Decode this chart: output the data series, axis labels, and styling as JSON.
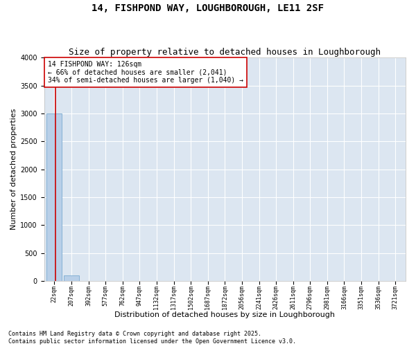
{
  "title1": "14, FISHPOND WAY, LOUGHBOROUGH, LE11 2SF",
  "title2": "Size of property relative to detached houses in Loughborough",
  "xlabel": "Distribution of detached houses by size in Loughborough",
  "ylabel": "Number of detached properties",
  "bin_labels": [
    "22sqm",
    "207sqm",
    "392sqm",
    "577sqm",
    "762sqm",
    "947sqm",
    "1132sqm",
    "1317sqm",
    "1502sqm",
    "1687sqm",
    "1872sqm",
    "2056sqm",
    "2241sqm",
    "2426sqm",
    "2611sqm",
    "2796sqm",
    "2981sqm",
    "3166sqm",
    "3351sqm",
    "3536sqm",
    "3721sqm"
  ],
  "bar_values": [
    3000,
    100,
    0,
    0,
    0,
    0,
    0,
    0,
    0,
    0,
    0,
    0,
    0,
    0,
    0,
    0,
    0,
    0,
    0,
    0,
    0
  ],
  "bar_color": "#b8cfe8",
  "bar_edge_color": "#7aaad0",
  "property_line_color": "#cc0000",
  "ylim": [
    0,
    4000
  ],
  "yticks": [
    0,
    500,
    1000,
    1500,
    2000,
    2500,
    3000,
    3500,
    4000
  ],
  "annotation_text": "14 FISHPOND WAY: 126sqm\n← 66% of detached houses are smaller (2,041)\n34% of semi-detached houses are larger (1,040) →",
  "annotation_box_color": "#cc0000",
  "annotation_bg": "#ffffff",
  "bg_color": "#dce6f1",
  "grid_color": "#ffffff",
  "fig_bg": "#ffffff",
  "footnote1": "Contains HM Land Registry data © Crown copyright and database right 2025.",
  "footnote2": "Contains public sector information licensed under the Open Government Licence v3.0.",
  "title_fontsize": 10,
  "subtitle_fontsize": 9,
  "ylabel_fontsize": 8,
  "xlabel_fontsize": 8,
  "tick_fontsize": 6,
  "ann_fontsize": 7,
  "footnote_fontsize": 6
}
